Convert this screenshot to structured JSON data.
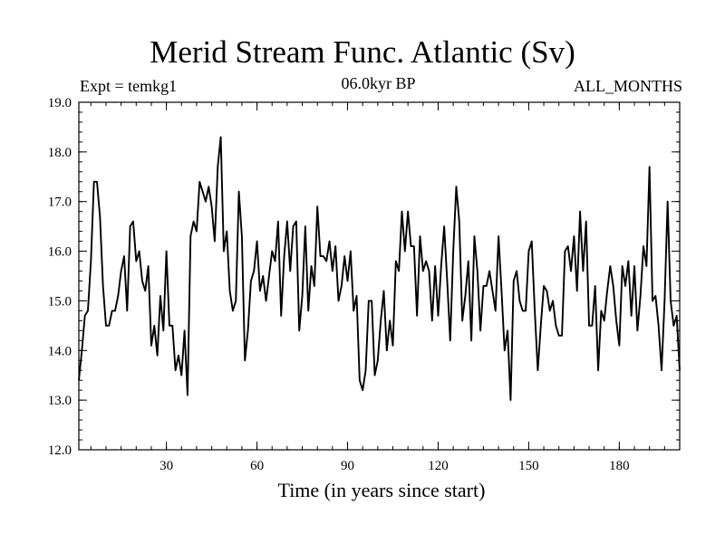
{
  "chart_data": {
    "type": "line",
    "title": "Merid Stream Func. Atlantic (Sv)",
    "left_label": "Expt = temkg1",
    "subtitle": "06.0kyr BP",
    "right_label": "ALL_MONTHS",
    "xlabel": "Time (in years since start)",
    "ylabel": "",
    "xlim": [
      1,
      200
    ],
    "ylim": [
      12.0,
      19.0
    ],
    "xticks": [
      30,
      60,
      90,
      120,
      150,
      180
    ],
    "yticks": [
      12.0,
      13.0,
      14.0,
      15.0,
      16.0,
      17.0,
      18.0,
      19.0
    ],
    "ytick_labels": [
      "12.0",
      "13.0",
      "14.0",
      "15.0",
      "16.0",
      "17.0",
      "18.0",
      "19.0"
    ],
    "series": [
      {
        "name": "Merid Stream Func. Atlantic",
        "color": "#000000",
        "x": [
          1,
          2,
          3,
          4,
          5,
          6,
          7,
          8,
          9,
          10,
          11,
          12,
          13,
          14,
          15,
          16,
          17,
          18,
          19,
          20,
          21,
          22,
          23,
          24,
          25,
          26,
          27,
          28,
          29,
          30,
          31,
          32,
          33,
          34,
          35,
          36,
          37,
          38,
          39,
          40,
          41,
          42,
          43,
          44,
          45,
          46,
          47,
          48,
          49,
          50,
          51,
          52,
          53,
          54,
          55,
          56,
          57,
          58,
          59,
          60,
          61,
          62,
          63,
          64,
          65,
          66,
          67,
          68,
          69,
          70,
          71,
          72,
          73,
          74,
          75,
          76,
          77,
          78,
          79,
          80,
          81,
          82,
          83,
          84,
          85,
          86,
          87,
          88,
          89,
          90,
          91,
          92,
          93,
          94,
          95,
          96,
          97,
          98,
          99,
          100,
          101,
          102,
          103,
          104,
          105,
          106,
          107,
          108,
          109,
          110,
          111,
          112,
          113,
          114,
          115,
          116,
          117,
          118,
          119,
          120,
          121,
          122,
          123,
          124,
          125,
          126,
          127,
          128,
          129,
          130,
          131,
          132,
          133,
          134,
          135,
          136,
          137,
          138,
          139,
          140,
          141,
          142,
          143,
          144,
          145,
          146,
          147,
          148,
          149,
          150,
          151,
          152,
          153,
          154,
          155,
          156,
          157,
          158,
          159,
          160,
          161,
          162,
          163,
          164,
          165,
          166,
          167,
          168,
          169,
          170,
          171,
          172,
          173,
          174,
          175,
          176,
          177,
          178,
          179,
          180,
          181,
          182,
          183,
          184,
          185,
          186,
          187,
          188,
          189,
          190,
          191,
          192,
          193,
          194,
          195,
          196,
          197,
          198,
          199,
          200
        ],
        "values": [
          13.4,
          14.0,
          14.7,
          14.8,
          15.8,
          17.4,
          17.4,
          16.7,
          15.3,
          14.5,
          14.5,
          14.8,
          14.8,
          15.1,
          15.6,
          15.9,
          14.8,
          16.5,
          16.6,
          15.8,
          16.0,
          15.4,
          15.2,
          15.7,
          14.1,
          14.5,
          13.9,
          15.1,
          14.4,
          16.0,
          14.5,
          14.5,
          13.6,
          13.9,
          13.5,
          14.4,
          13.1,
          16.3,
          16.6,
          16.4,
          17.4,
          17.2,
          17.0,
          17.3,
          16.9,
          16.2,
          17.7,
          18.3,
          16.0,
          16.4,
          15.2,
          14.8,
          15.0,
          17.2,
          16.3,
          13.8,
          14.4,
          15.4,
          15.6,
          16.2,
          15.2,
          15.5,
          15.0,
          15.5,
          16.0,
          15.8,
          16.6,
          14.7,
          15.9,
          16.6,
          15.6,
          16.5,
          16.6,
          14.4,
          15.1,
          16.5,
          14.8,
          15.7,
          15.3,
          16.9,
          15.9,
          15.9,
          15.8,
          16.2,
          15.6,
          16.1,
          15.0,
          15.3,
          15.9,
          15.4,
          16.0,
          14.8,
          15.1,
          13.4,
          13.2,
          13.6,
          15.0,
          15.0,
          13.5,
          13.8,
          14.6,
          15.2,
          14.0,
          14.6,
          14.1,
          15.8,
          15.6,
          16.8,
          16.0,
          16.8,
          16.1,
          16.1,
          14.7,
          16.3,
          15.6,
          15.8,
          15.6,
          14.6,
          15.7,
          14.7,
          15.7,
          16.5,
          15.4,
          14.2,
          16.0,
          17.3,
          16.6,
          14.6,
          15.1,
          15.8,
          14.2,
          16.3,
          15.6,
          14.4,
          15.3,
          15.3,
          15.6,
          15.2,
          14.8,
          16.3,
          15.2,
          14.0,
          14.4,
          13.0,
          15.4,
          15.6,
          15.0,
          14.8,
          14.8,
          16.0,
          16.2,
          14.8,
          13.6,
          14.5,
          15.3,
          15.2,
          14.8,
          15.0,
          14.5,
          14.3,
          14.3,
          16.0,
          16.1,
          15.6,
          16.3,
          15.2,
          16.8,
          15.6,
          16.6,
          14.5,
          14.5,
          15.3,
          13.6,
          14.8,
          14.6,
          15.2,
          15.7,
          15.3,
          14.6,
          14.1,
          15.7,
          15.3,
          15.8,
          14.7,
          15.7,
          14.4,
          15.1,
          16.1,
          15.7,
          17.7,
          15.0,
          15.1,
          14.5,
          13.6,
          15.0,
          17.0,
          15.0,
          14.5,
          14.7,
          13.6
        ]
      }
    ]
  }
}
